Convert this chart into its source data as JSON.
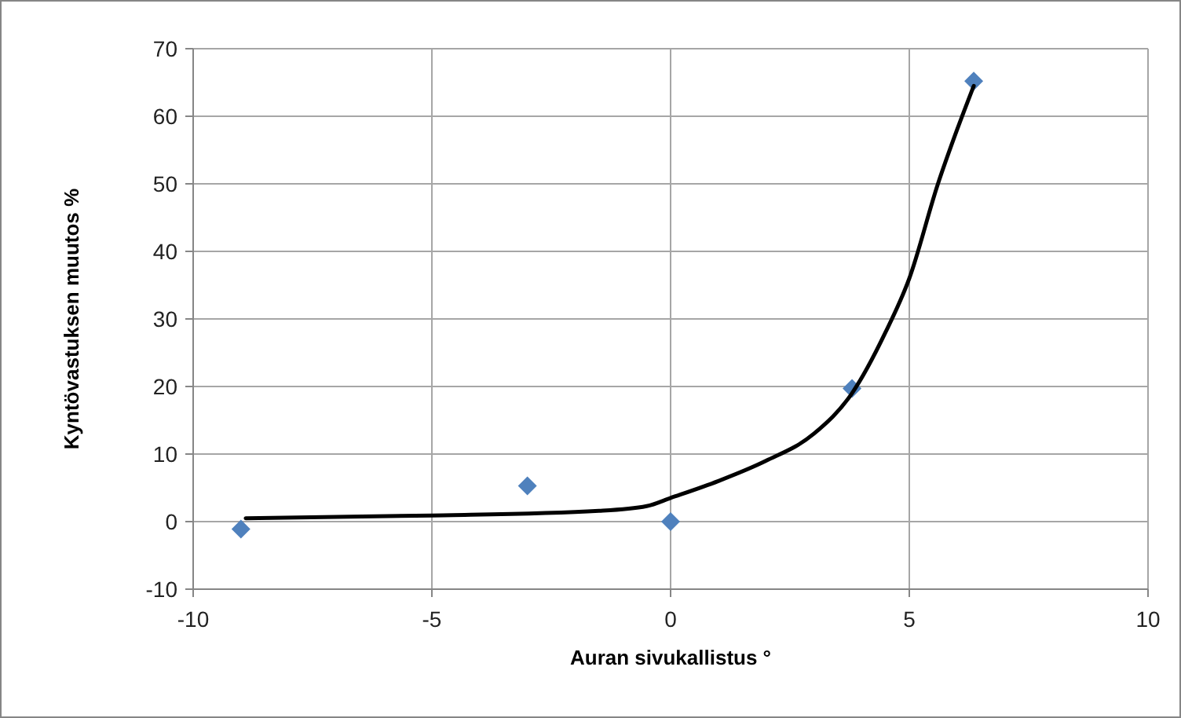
{
  "chart_data": {
    "type": "scatter",
    "xlabel": "Auran sivukallistus  °",
    "ylabel": "Kyntövastuksen muutos %",
    "xlim": [
      -10,
      10
    ],
    "xticks": [
      -10,
      -5,
      0,
      5,
      10
    ],
    "ylim": [
      -10,
      70
    ],
    "yticks": [
      -10,
      0,
      10,
      20,
      30,
      40,
      50,
      60,
      70
    ],
    "grid": true,
    "series": [
      {
        "color": "#4f81bd",
        "marker": "diamond",
        "x": [
          -9,
          -3,
          0,
          3.8,
          6.35
        ],
        "values": [
          -1.1,
          5.3,
          0,
          19.7,
          65.2
        ]
      },
      {
        "type": "line",
        "color": "#000000",
        "marker": "none",
        "x": [
          -8.9,
          -5,
          -1.5,
          -0.5,
          0,
          1,
          2,
          3,
          3.8,
          4.5,
          5,
          5.6,
          6,
          6.35
        ],
        "values": [
          0.5,
          0.9,
          1.6,
          2.3,
          3.5,
          6,
          9,
          13,
          19,
          28,
          36,
          50,
          58,
          64.5
        ]
      }
    ]
  }
}
